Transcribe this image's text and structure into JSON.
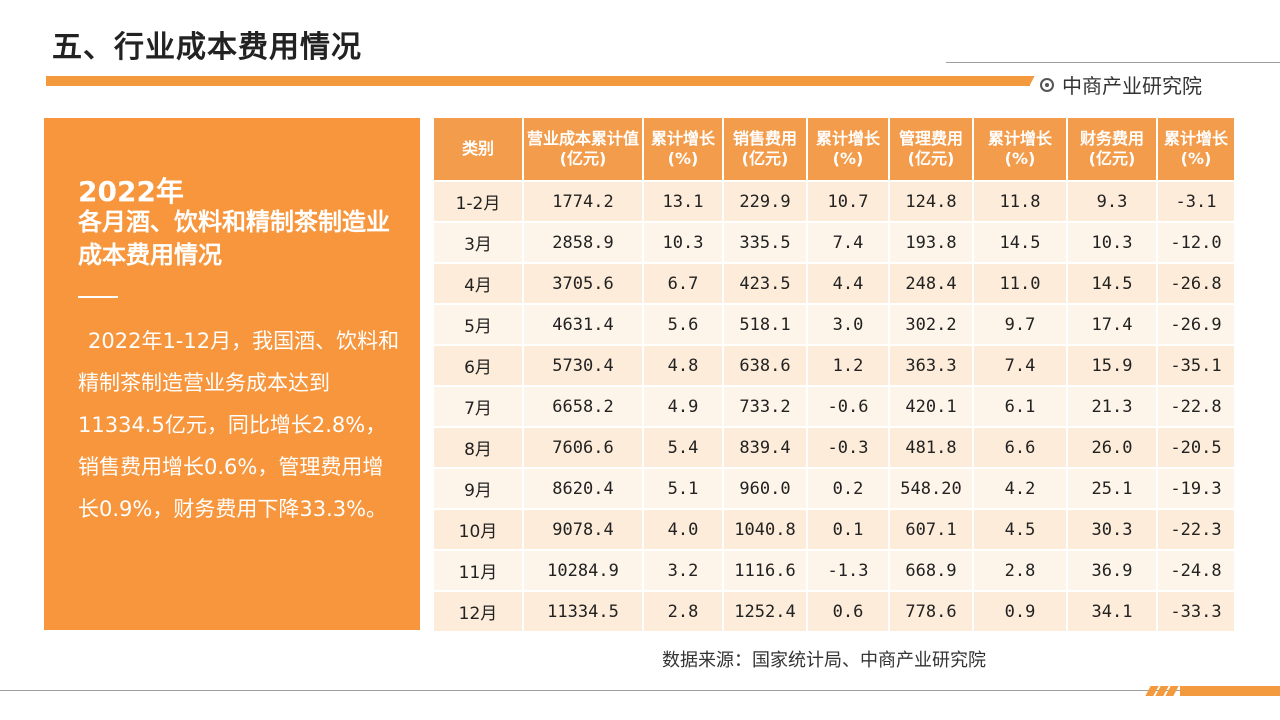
{
  "header": {
    "title": "五、行业成本费用情况",
    "brand": "中商产业研究院"
  },
  "panel": {
    "year": "2022年",
    "subtitle": "各月酒、饮料和精制茶制造业成本费用情况",
    "body": "2022年1-12月，我国酒、饮料和精制茶制造营业务成本达到11334.5亿元，同比增长2.8%，销售费用增长0.6%，管理费用增长0.9%，财务费用下降33.3%。"
  },
  "table": {
    "headers": [
      "类别",
      "营业成本累计值(亿元)",
      "累计增长(%)",
      "销售费用(亿元)",
      "累计增长(%)",
      "管理费用(亿元)",
      "累计增长(%)",
      "财务费用(亿元)",
      "累计增长(%)"
    ],
    "rows": [
      [
        "1-2月",
        "1774.2",
        "13.1",
        "229.9",
        "10.7",
        "124.8",
        "11.8",
        "9.3",
        "-3.1"
      ],
      [
        "3月",
        "2858.9",
        "10.3",
        "335.5",
        "7.4",
        "193.8",
        "14.5",
        "10.3",
        "-12.0"
      ],
      [
        "4月",
        "3705.6",
        "6.7",
        "423.5",
        "4.4",
        "248.4",
        "11.0",
        "14.5",
        "-26.8"
      ],
      [
        "5月",
        "4631.4",
        "5.6",
        "518.1",
        "3.0",
        "302.2",
        "9.7",
        "17.4",
        "-26.9"
      ],
      [
        "6月",
        "5730.4",
        "4.8",
        "638.6",
        "1.2",
        "363.3",
        "7.4",
        "15.9",
        "-35.1"
      ],
      [
        "7月",
        "6658.2",
        "4.9",
        "733.2",
        "-0.6",
        "420.1",
        "6.1",
        "21.3",
        "-22.8"
      ],
      [
        "8月",
        "7606.6",
        "5.4",
        "839.4",
        "-0.3",
        "481.8",
        "6.6",
        "26.0",
        "-20.5"
      ],
      [
        "9月",
        "8620.4",
        "5.1",
        "960.0",
        "0.2",
        "548.20",
        "4.2",
        "25.1",
        "-19.3"
      ],
      [
        "10月",
        "9078.4",
        "4.0",
        "1040.8",
        "0.1",
        "607.1",
        "4.5",
        "30.3",
        "-22.3"
      ],
      [
        "11月",
        "10284.9",
        "3.2",
        "1116.6",
        "-1.3",
        "668.9",
        "2.8",
        "36.9",
        "-24.8"
      ],
      [
        "12月",
        "11334.5",
        "2.8",
        "1252.4",
        "0.6",
        "778.6",
        "0.9",
        "34.1",
        "-33.3"
      ]
    ]
  },
  "source": "数据来源：国家统计局、中商产业研究院",
  "colors": {
    "accent": "#f39a3e",
    "panel_bg": "#f7963c",
    "header_bg": "#f39c4b",
    "row_odd": "#fdecd9",
    "row_even": "#fef5ea"
  }
}
